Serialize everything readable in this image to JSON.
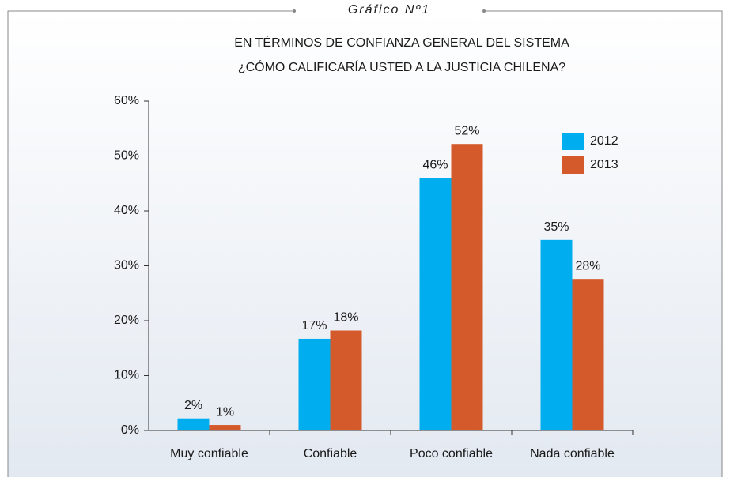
{
  "chart_data": {
    "type": "bar",
    "figure_label": "Gráfico Nº1",
    "title": [
      "EN TÉRMINOS DE CONFIANZA GENERAL DEL SISTEMA",
      "¿CÓMO CALIFICARÍA USTED A LA JUSTICIA CHILENA?"
    ],
    "categories": [
      "Muy confiable",
      "Confiable",
      "Poco confiable",
      "Nada confiable"
    ],
    "series": [
      {
        "name": "2012",
        "color": "#00aeef",
        "values": [
          2.2,
          16.7,
          46,
          34.7
        ],
        "value_labels": [
          "2%",
          "17%",
          "46%",
          "35%"
        ]
      },
      {
        "name": "2013",
        "color": "#d45a2b",
        "values": [
          1.0,
          18.2,
          52.2,
          27.6
        ],
        "value_labels": [
          "1%",
          "18%",
          "52%",
          "28%"
        ]
      }
    ],
    "ylim": [
      0,
      60
    ],
    "yticks": [
      {
        "value": 0,
        "label": "0%"
      },
      {
        "value": 10,
        "label": "10%"
      },
      {
        "value": 20,
        "label": "20%"
      },
      {
        "value": 30,
        "label": "30%"
      },
      {
        "value": 40,
        "label": "40%"
      },
      {
        "value": 50,
        "label": "50%"
      },
      {
        "value": 60,
        "label": "60%"
      }
    ],
    "legend": "upper right"
  }
}
